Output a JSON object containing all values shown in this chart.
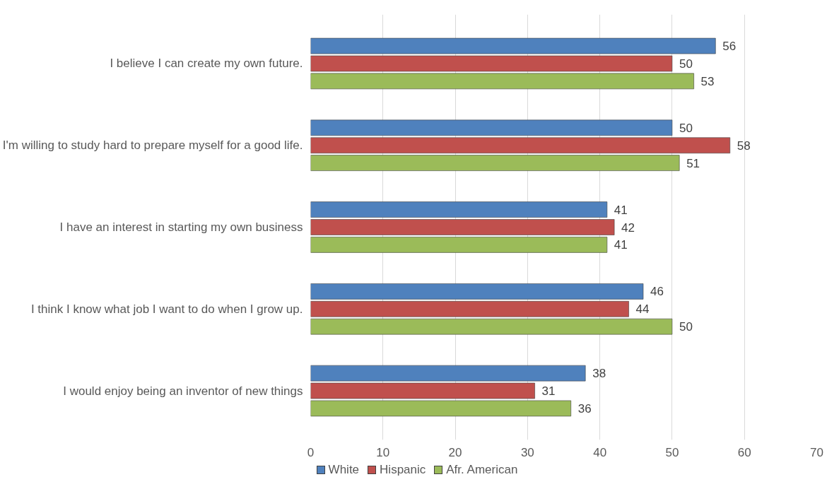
{
  "chart_data": {
    "type": "bar",
    "orientation": "horizontal",
    "categories": [
      "I believe I can create my own future.",
      "I'm willing to study hard to prepare myself for a good life.",
      "I have an interest in starting my own business",
      "I think I know what job I want to do when I grow up.",
      "I would enjoy being an inventor of new things"
    ],
    "series": [
      {
        "name": "White",
        "color": "#4f81bd",
        "values": [
          56,
          50,
          41,
          46,
          38
        ]
      },
      {
        "name": "Hispanic",
        "color": "#c0504d",
        "values": [
          50,
          58,
          42,
          44,
          31
        ]
      },
      {
        "name": "Afr. American",
        "color": "#9bbb59",
        "values": [
          53,
          51,
          41,
          50,
          36
        ]
      }
    ],
    "xlim": [
      0,
      70
    ],
    "xticks": [
      0,
      10,
      20,
      30,
      40,
      50,
      60,
      70
    ],
    "grid": "x",
    "legend": "bottom",
    "data_labels": true
  }
}
